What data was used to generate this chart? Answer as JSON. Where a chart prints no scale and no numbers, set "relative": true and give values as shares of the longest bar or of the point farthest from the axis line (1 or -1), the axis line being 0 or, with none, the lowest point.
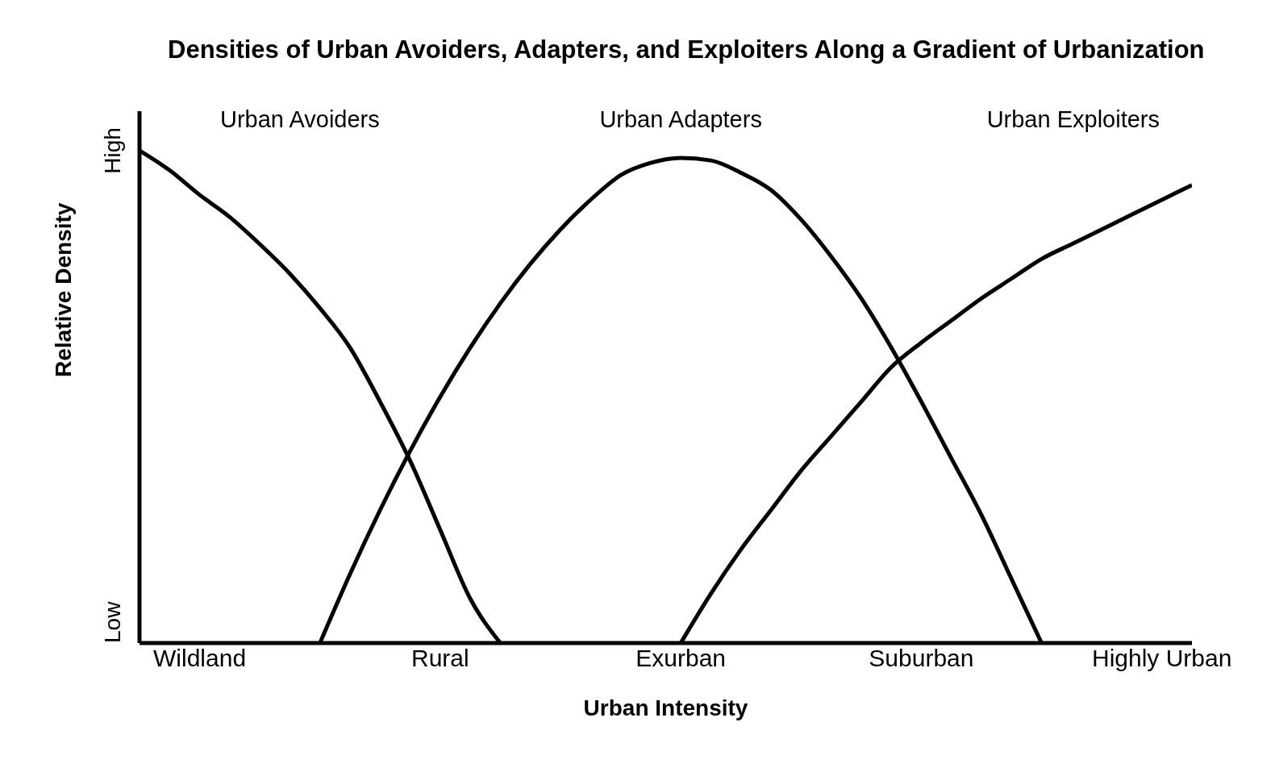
{
  "chart_data": {
    "type": "line",
    "title": "Densities of Urban Avoiders, Adapters, and Exploiters Along a Gradient of Urbanization",
    "xlabel": "Urban Intensity",
    "ylabel": "Relative Density",
    "relative": true,
    "categories": [
      null,
      null,
      "Wildland",
      null,
      null,
      null,
      null,
      null,
      null,
      null,
      "Rural",
      null,
      null,
      null,
      null,
      null,
      null,
      null,
      "Exurban",
      null,
      null,
      null,
      null,
      null,
      null,
      null,
      "Suburban",
      null,
      null,
      null,
      null,
      null,
      null,
      null,
      "Highly Urban",
      null
    ],
    "annotations": [
      "Low",
      "High"
    ],
    "grid": false,
    "legend": false,
    "line_style": "solid",
    "series": [
      {
        "name": "Urban Avoiders",
        "color": "#000000",
        "values": [
          1.0,
          0.96,
          0.91,
          0.865,
          0.81,
          0.75,
          0.68,
          0.6,
          0.49,
          0.37,
          0.23,
          0.09,
          0,
          null,
          null,
          null,
          null,
          null,
          null,
          null,
          null,
          null,
          null,
          null,
          null,
          null,
          null,
          null,
          null,
          null,
          null,
          null,
          null,
          null,
          null,
          null
        ]
      },
      {
        "name": "Urban Adapters",
        "color": "#000000",
        "values": [
          null,
          null,
          null,
          null,
          null,
          null,
          0,
          0.14,
          0.27,
          0.39,
          0.5,
          0.6,
          0.69,
          0.77,
          0.84,
          0.9,
          0.95,
          0.975,
          0.985,
          0.98,
          0.955,
          0.92,
          0.86,
          0.785,
          0.7,
          0.6,
          0.49,
          0.375,
          0.26,
          0.13,
          0,
          null,
          null,
          null,
          null,
          null
        ]
      },
      {
        "name": "Urban Exploiters",
        "color": "#000000",
        "values": [
          null,
          null,
          null,
          null,
          null,
          null,
          null,
          null,
          null,
          null,
          null,
          null,
          null,
          null,
          null,
          null,
          null,
          null,
          0,
          0.1,
          0.19,
          0.27,
          0.35,
          0.42,
          0.49,
          0.56,
          0.61,
          0.655,
          0.7,
          0.74,
          0.78,
          0.81,
          0.84,
          0.87,
          0.9,
          0.93
        ]
      }
    ]
  }
}
